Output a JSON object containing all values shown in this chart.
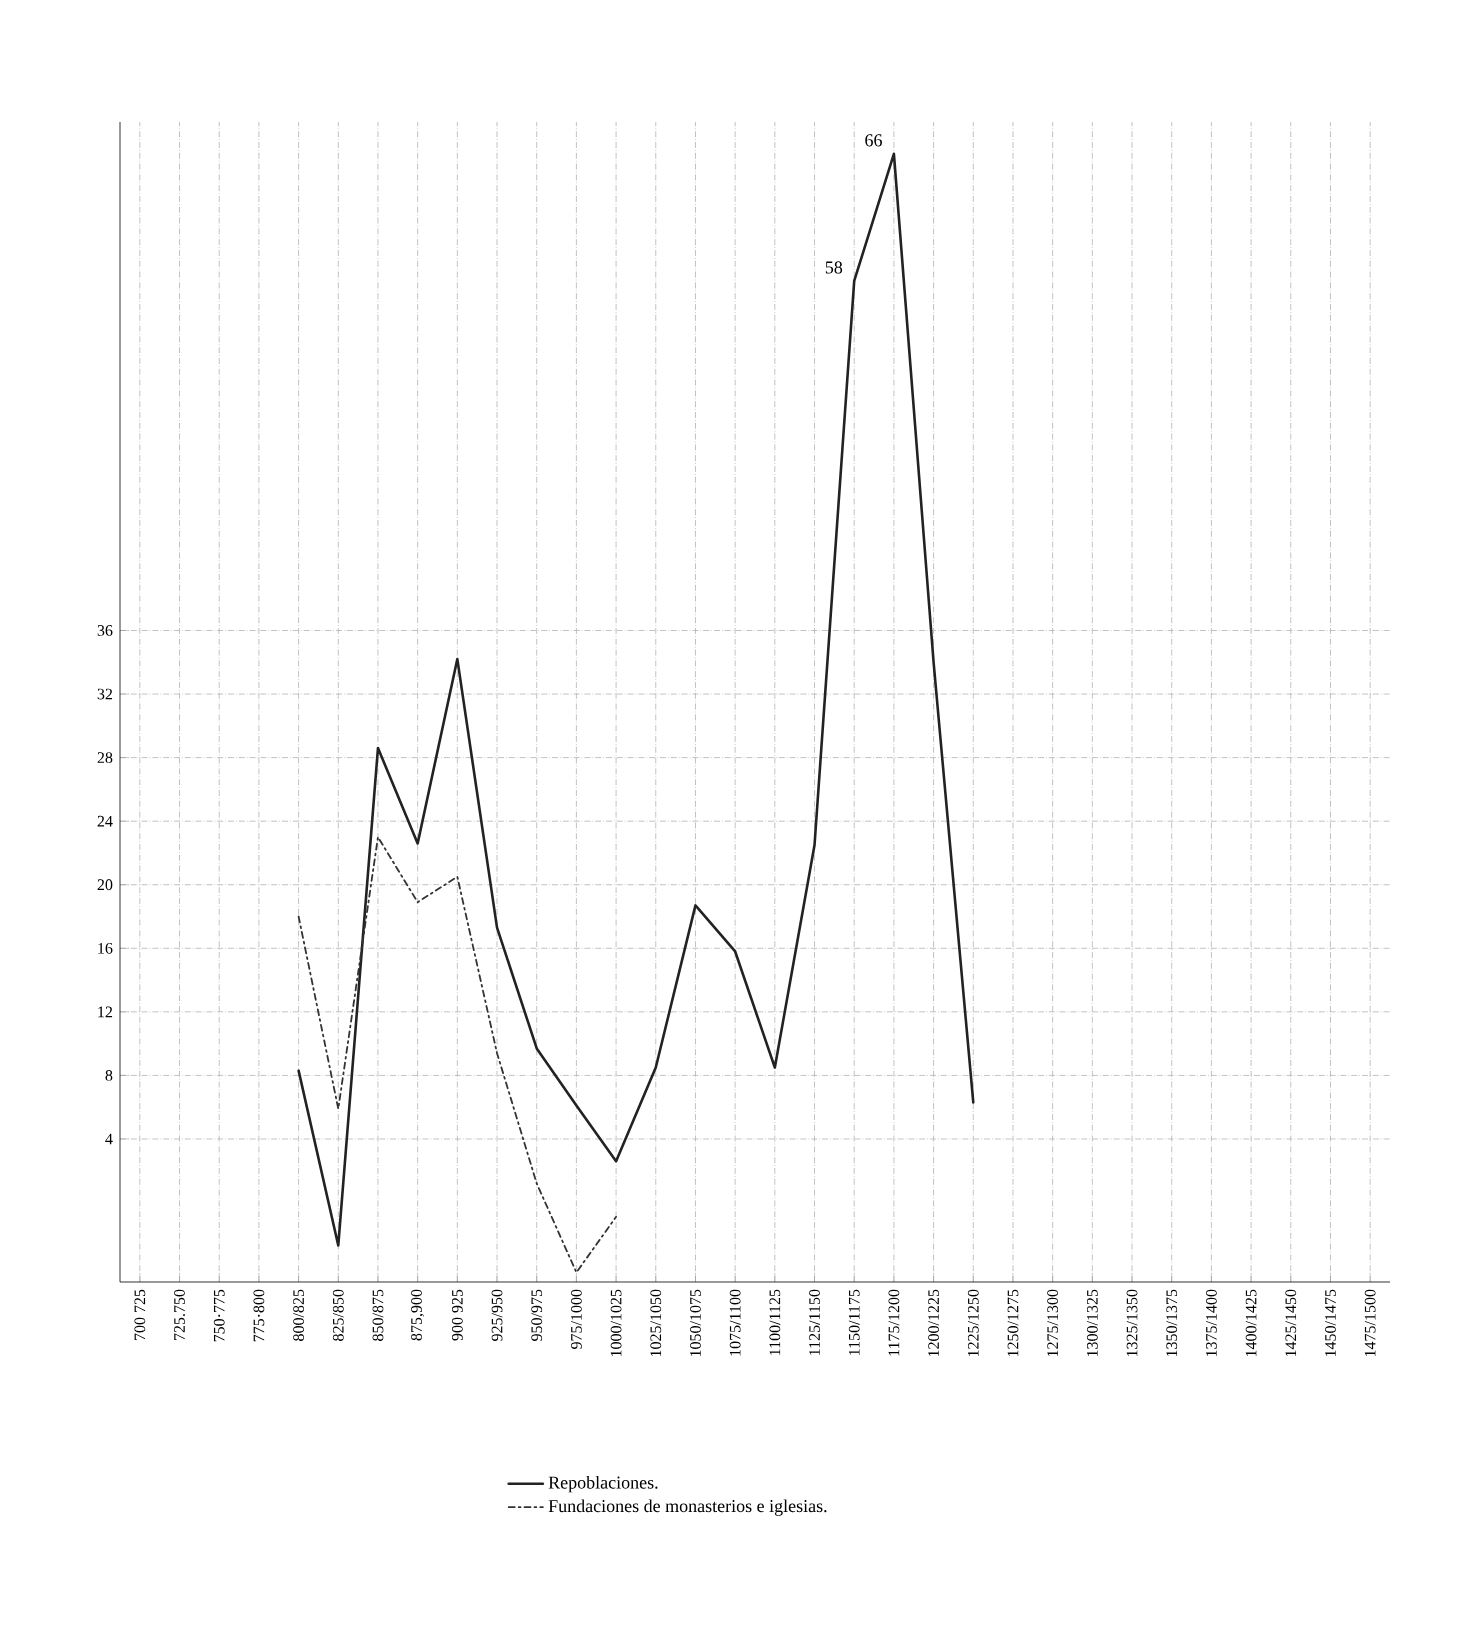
{
  "chart_data": {
    "type": "line",
    "categories": [
      "700 725",
      "725.750",
      "750·775",
      "775·800",
      "800/825",
      "825/850",
      "850/875",
      "875,900",
      "900 925",
      "925/950",
      "950/975",
      "975/1000",
      "1000/1025",
      "1025/1050",
      "1050/1075",
      "1075/1100",
      "1100/1125",
      "1125/1150",
      "1150/1175",
      "1175/1200",
      "1200/1225",
      "1225/1250",
      "1250/1275",
      "1275/1300",
      "1300/1325",
      "1325/1350",
      "1350/1375",
      "1375/1400",
      "1400/1425",
      "1425/1450",
      "1450/1475",
      "1475/1500"
    ],
    "series": [
      {
        "name": "Repoblaciones.",
        "color": "#222222",
        "line_style": "solid",
        "values": [
          null,
          null,
          null,
          null,
          8.3,
          -2.7,
          28.6,
          22.6,
          34.2,
          17.3,
          9.7,
          6.1,
          2.6,
          8.5,
          18.7,
          15.8,
          8.5,
          22.5,
          58,
          66,
          34,
          6.3,
          null,
          null,
          null,
          null,
          null,
          null,
          null,
          null,
          null,
          null
        ],
        "value_labels": [
          null,
          null,
          null,
          null,
          null,
          null,
          null,
          null,
          null,
          null,
          null,
          null,
          null,
          null,
          null,
          null,
          null,
          null,
          "58",
          "66",
          null,
          null,
          null,
          null,
          null,
          null,
          null,
          null,
          null,
          null,
          null,
          null
        ]
      },
      {
        "name": "Fundaciones de monasterios e iglesias.",
        "color": "#333333",
        "line_style": "dashed",
        "values": [
          null,
          null,
          null,
          null,
          18,
          5.9,
          23,
          18.9,
          20.5,
          9.4,
          1.2,
          -4.4,
          -0.9,
          null,
          null,
          null,
          null,
          null,
          null,
          null,
          null,
          null,
          null,
          null,
          null,
          null,
          null,
          null,
          null,
          null,
          null,
          null
        ]
      }
    ],
    "ylim": [
      -5,
      68
    ],
    "yticks": [
      4,
      8,
      12,
      16,
      20,
      24,
      28,
      32,
      36
    ],
    "grid": true,
    "legend": "bottom",
    "marker": "none"
  }
}
